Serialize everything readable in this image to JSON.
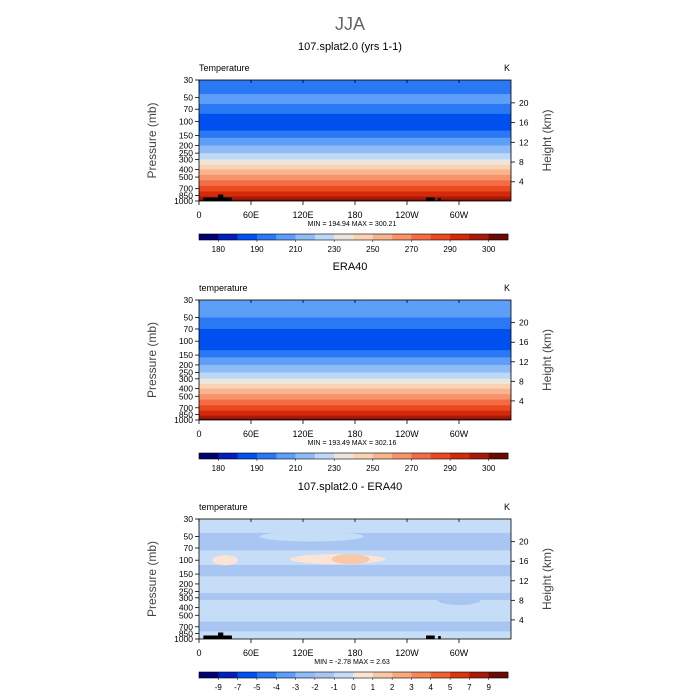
{
  "figure_title": "JJA",
  "chart_data": [
    {
      "type": "heatmap",
      "title": "107.splat2.0 (yrs 1-1)",
      "variable_label": "Temperature",
      "units": "K",
      "xlabel": "",
      "ylabel": "Pressure (mb)",
      "y2label": "Height (km)",
      "x_ticks": [
        "0",
        "60E",
        "120E",
        "180",
        "120W",
        "60W"
      ],
      "y_ticks": [
        "30",
        "50",
        "70",
        "100",
        "150",
        "200",
        "250",
        "300",
        "400",
        "500",
        "700",
        "850",
        "1000"
      ],
      "y2_ticks": [
        "4",
        "8",
        "12",
        "16",
        "20"
      ],
      "stats": "MIN = 194.94   MAX = 300.21",
      "has_topography": true,
      "colorbar_labels": [
        "180",
        "190",
        "210",
        "230",
        "250",
        "270",
        "290",
        "300"
      ],
      "colors": [
        "#000070",
        "#0020b8",
        "#0050f0",
        "#2b78f5",
        "#5d9ef8",
        "#8fbcf6",
        "#bdd9f8",
        "#ece6dc",
        "#f9d3b4",
        "#f8b48c",
        "#f7926a",
        "#f36c45",
        "#ea4a20",
        "#d42a0a",
        "#a51a08",
        "#6a0b04"
      ],
      "profile_bands": [
        {
          "pressure_mb": 30,
          "band": 3
        },
        {
          "pressure_mb": 45,
          "band": 4
        },
        {
          "pressure_mb": 60,
          "band": 3
        },
        {
          "pressure_mb": 80,
          "band": 2
        },
        {
          "pressure_mb": 105,
          "band": 2
        },
        {
          "pressure_mb": 130,
          "band": 3
        },
        {
          "pressure_mb": 160,
          "band": 4
        },
        {
          "pressure_mb": 200,
          "band": 5
        },
        {
          "pressure_mb": 250,
          "band": 6
        },
        {
          "pressure_mb": 300,
          "band": 7
        },
        {
          "pressure_mb": 350,
          "band": 8
        },
        {
          "pressure_mb": 400,
          "band": 9
        },
        {
          "pressure_mb": 470,
          "band": 10
        },
        {
          "pressure_mb": 550,
          "band": 11
        },
        {
          "pressure_mb": 650,
          "band": 12
        },
        {
          "pressure_mb": 760,
          "band": 13
        },
        {
          "pressure_mb": 880,
          "band": 14
        },
        {
          "pressure_mb": 960,
          "band": 15
        }
      ]
    },
    {
      "type": "heatmap",
      "title": "ERA40",
      "variable_label": "temperature",
      "units": "K",
      "xlabel": "",
      "ylabel": "Pressure (mb)",
      "y2label": "Height (km)",
      "x_ticks": [
        "0",
        "60E",
        "120E",
        "180",
        "120W",
        "60W"
      ],
      "y_ticks": [
        "30",
        "50",
        "70",
        "100",
        "150",
        "200",
        "250",
        "300",
        "400",
        "500",
        "700",
        "850",
        "1000"
      ],
      "y2_ticks": [
        "4",
        "8",
        "12",
        "16",
        "20"
      ],
      "stats": "MIN = 193.49   MAX = 302.16",
      "has_topography": false,
      "colorbar_labels": [
        "180",
        "190",
        "210",
        "230",
        "250",
        "270",
        "290",
        "300"
      ],
      "colors": [
        "#000070",
        "#0020b8",
        "#0050f0",
        "#2b78f5",
        "#5d9ef8",
        "#8fbcf6",
        "#bdd9f8",
        "#ece6dc",
        "#f9d3b4",
        "#f8b48c",
        "#f7926a",
        "#f36c45",
        "#ea4a20",
        "#d42a0a",
        "#a51a08",
        "#6a0b04"
      ],
      "profile_bands": [
        {
          "pressure_mb": 30,
          "band": 4
        },
        {
          "pressure_mb": 50,
          "band": 3
        },
        {
          "pressure_mb": 70,
          "band": 2
        },
        {
          "pressure_mb": 105,
          "band": 2
        },
        {
          "pressure_mb": 130,
          "band": 3
        },
        {
          "pressure_mb": 160,
          "band": 4
        },
        {
          "pressure_mb": 200,
          "band": 5
        },
        {
          "pressure_mb": 250,
          "band": 6
        },
        {
          "pressure_mb": 300,
          "band": 7
        },
        {
          "pressure_mb": 350,
          "band": 8
        },
        {
          "pressure_mb": 400,
          "band": 9
        },
        {
          "pressure_mb": 470,
          "band": 10
        },
        {
          "pressure_mb": 550,
          "band": 11
        },
        {
          "pressure_mb": 650,
          "band": 12
        },
        {
          "pressure_mb": 760,
          "band": 13
        },
        {
          "pressure_mb": 880,
          "band": 14
        },
        {
          "pressure_mb": 960,
          "band": 15
        }
      ]
    },
    {
      "type": "heatmap",
      "title": "107.splat2.0 - ERA40",
      "variable_label": "temperature",
      "units": "K",
      "xlabel": "",
      "ylabel": "Pressure (mb)",
      "y2label": "Height (km)",
      "x_ticks": [
        "0",
        "60E",
        "120E",
        "180",
        "120W",
        "60W"
      ],
      "y_ticks": [
        "30",
        "50",
        "70",
        "100",
        "150",
        "200",
        "250",
        "300",
        "400",
        "500",
        "700",
        "850",
        "1000"
      ],
      "y2_ticks": [
        "4",
        "8",
        "12",
        "16",
        "20"
      ],
      "stats": "MIN =  -2.78   MAX =   2.63",
      "has_topography": true,
      "colorbar_labels": [
        "-9",
        "-7",
        "-5",
        "-4",
        "-3",
        "-2",
        "-1",
        "0",
        "1",
        "2",
        "3",
        "4",
        "5",
        "7",
        "9"
      ],
      "colors": [
        "#000070",
        "#0020b8",
        "#0050f0",
        "#2b78f5",
        "#5d9ef8",
        "#8fbcf6",
        "#a9c6f3",
        "#c6ddf8",
        "#fbe4d6",
        "#f8c8a8",
        "#f7a97f",
        "#f48858",
        "#ee6233",
        "#d9380e",
        "#a51a08",
        "#6a0b04"
      ],
      "profile_bands": [
        {
          "pressure_mb": 30,
          "band": 7
        },
        {
          "pressure_mb": 45,
          "band": 6
        },
        {
          "pressure_mb": 75,
          "band": 7
        },
        {
          "pressure_mb": 115,
          "band": 6
        },
        {
          "pressure_mb": 160,
          "band": 7
        },
        {
          "pressure_mb": 260,
          "band": 6
        },
        {
          "pressure_mb": 320,
          "band": 7
        },
        {
          "pressure_mb": 600,
          "band": 6
        },
        {
          "pressure_mb": 800,
          "band": 7
        }
      ],
      "anomalies": [
        {
          "lon": 160,
          "pressure_mb": 97,
          "band": 8,
          "lon_half_width": 55
        },
        {
          "lon": 175,
          "pressure_mb": 97,
          "band": 9,
          "lon_half_width": 22
        },
        {
          "lon": 30,
          "pressure_mb": 100,
          "band": 8,
          "lon_half_width": 15
        },
        {
          "lon": 130,
          "pressure_mb": 50,
          "band": 7,
          "lon_half_width": 60
        },
        {
          "lon": 300,
          "pressure_mb": 320,
          "band": 6,
          "lon_half_width": 25
        }
      ]
    }
  ]
}
